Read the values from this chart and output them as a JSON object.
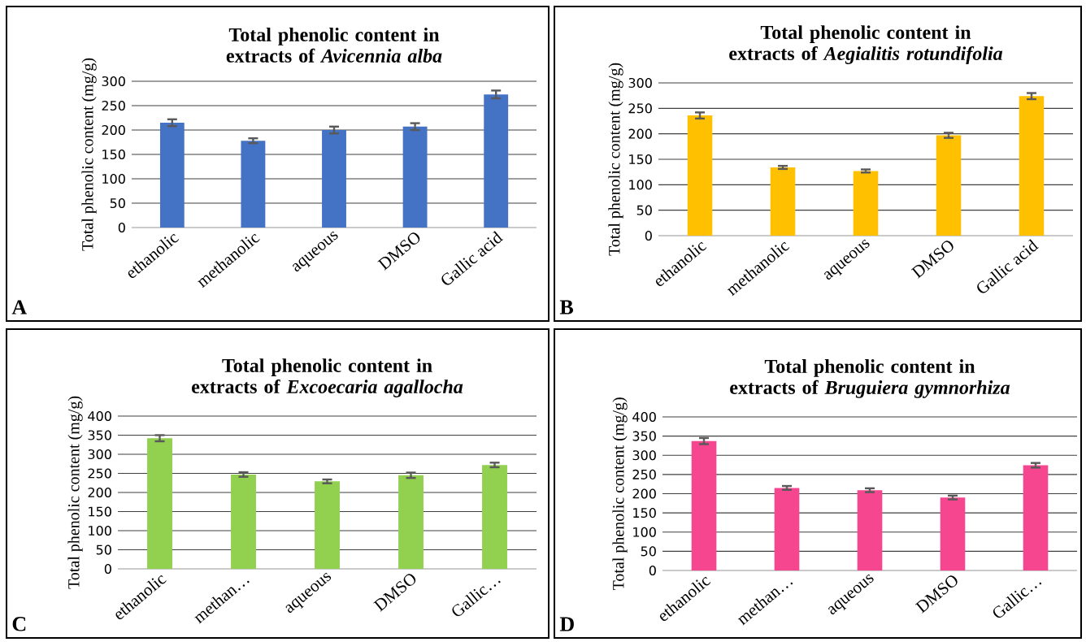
{
  "chart_data": [
    {
      "type": "bar",
      "title": "Total phenolic content in extracts of *Avicennia alba*",
      "ylabel": "Total phenolic content (mg/g)",
      "categories": [
        "ethanolic",
        "methanolic",
        "aqueous",
        "DMSO",
        "Gallic acid"
      ],
      "values": [
        215,
        178,
        200,
        207,
        273
      ],
      "errors": [
        7,
        5,
        7,
        7,
        8
      ],
      "color": "#4472c4",
      "ylim": [
        0,
        300
      ],
      "yticks": [
        0,
        50,
        100,
        150,
        200,
        250,
        300
      ],
      "grid": "y",
      "annotations": [
        "A"
      ]
    },
    {
      "type": "bar",
      "title": "Total phenolic content in extracts of *Aegialitis rotundifolia*",
      "ylabel": "Total phenolic content (mg/g)",
      "categories": [
        "ethanolic",
        "methanolic",
        "aqueous",
        "DMSO",
        "Gallic acid"
      ],
      "values": [
        236,
        134,
        127,
        197,
        274
      ],
      "errors": [
        6,
        3,
        3,
        5,
        6
      ],
      "color": "#ffc000",
      "ylim": [
        0,
        300
      ],
      "yticks": [
        0,
        50,
        100,
        150,
        200,
        250,
        300
      ],
      "grid": "y",
      "annotations": [
        "B"
      ]
    },
    {
      "type": "bar",
      "title": "Total phenolic content in extracts of *Excoecaria agallocha*",
      "ylabel": "Total phenolic content (mg/g)",
      "categories": [
        "ethanolic",
        "methan…",
        "aqueous",
        "DMSO",
        "Gallic…"
      ],
      "values": [
        342,
        247,
        229,
        245,
        272
      ],
      "errors": [
        8,
        6,
        5,
        7,
        6
      ],
      "color": "#92d050",
      "ylim": [
        0,
        400
      ],
      "yticks": [
        0,
        50,
        100,
        150,
        200,
        250,
        300,
        350,
        400
      ],
      "grid": "y",
      "annotations": [
        "C"
      ]
    },
    {
      "type": "bar",
      "title": "Total phenolic content in extracts of *Bruguiera gymnorhiza*",
      "ylabel": "Total phenolic content (mg/g)",
      "categories": [
        "ethanolic",
        "methan…",
        "aqueous",
        "DMSO",
        "Gallic…"
      ],
      "values": [
        337,
        215,
        209,
        190,
        274
      ],
      "errors": [
        8,
        5,
        5,
        5,
        6
      ],
      "color": "#f5468f",
      "ylim": [
        0,
        400
      ],
      "yticks": [
        0,
        50,
        100,
        150,
        200,
        250,
        300,
        350,
        400
      ],
      "grid": "y",
      "annotations": [
        "D"
      ]
    }
  ]
}
